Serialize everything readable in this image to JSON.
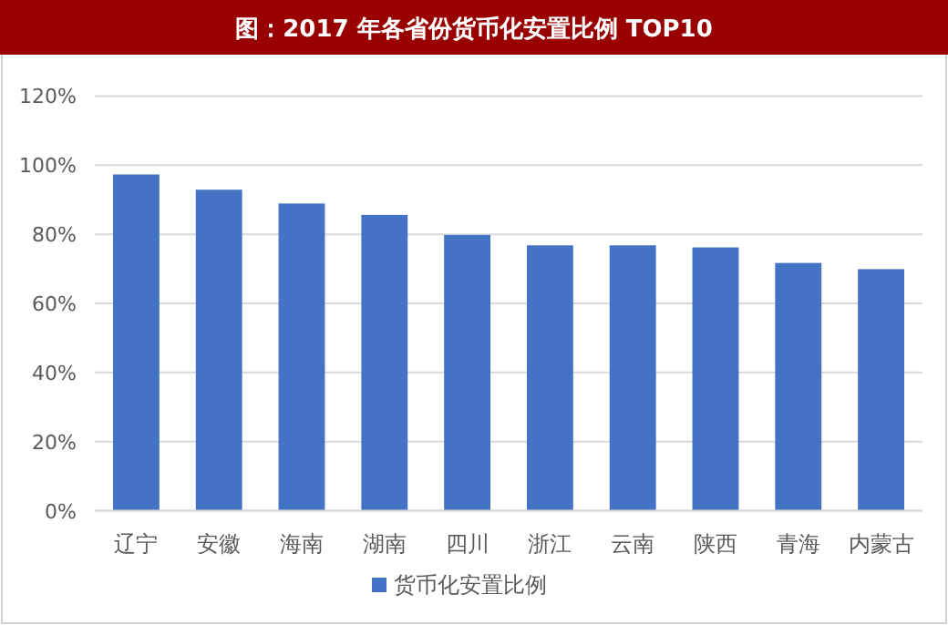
{
  "chart_data": {
    "type": "bar",
    "title": "图：2017 年各省份货币化安置比例 TOP10",
    "categories": [
      "辽宁",
      "安徽",
      "海南",
      "湖南",
      "四川",
      "浙江",
      "云南",
      "陕西",
      "青海",
      "内蒙古"
    ],
    "series": [
      {
        "name": "货币化安置比例",
        "color": "#4472c4",
        "values": [
          97.3,
          92.9,
          88.9,
          85.6,
          79.8,
          76.8,
          76.8,
          76.2,
          71.7,
          69.9
        ]
      }
    ],
    "ylim": [
      0,
      120
    ],
    "yticks": [
      {
        "value": 0,
        "label": "0%"
      },
      {
        "value": 20,
        "label": "20%"
      },
      {
        "value": 40,
        "label": "40%"
      },
      {
        "value": 60,
        "label": "60%"
      },
      {
        "value": 80,
        "label": "80%"
      },
      {
        "value": 100,
        "label": "100%"
      },
      {
        "value": 120,
        "label": "120%"
      }
    ],
    "grid": "y",
    "legend": "bottom"
  }
}
